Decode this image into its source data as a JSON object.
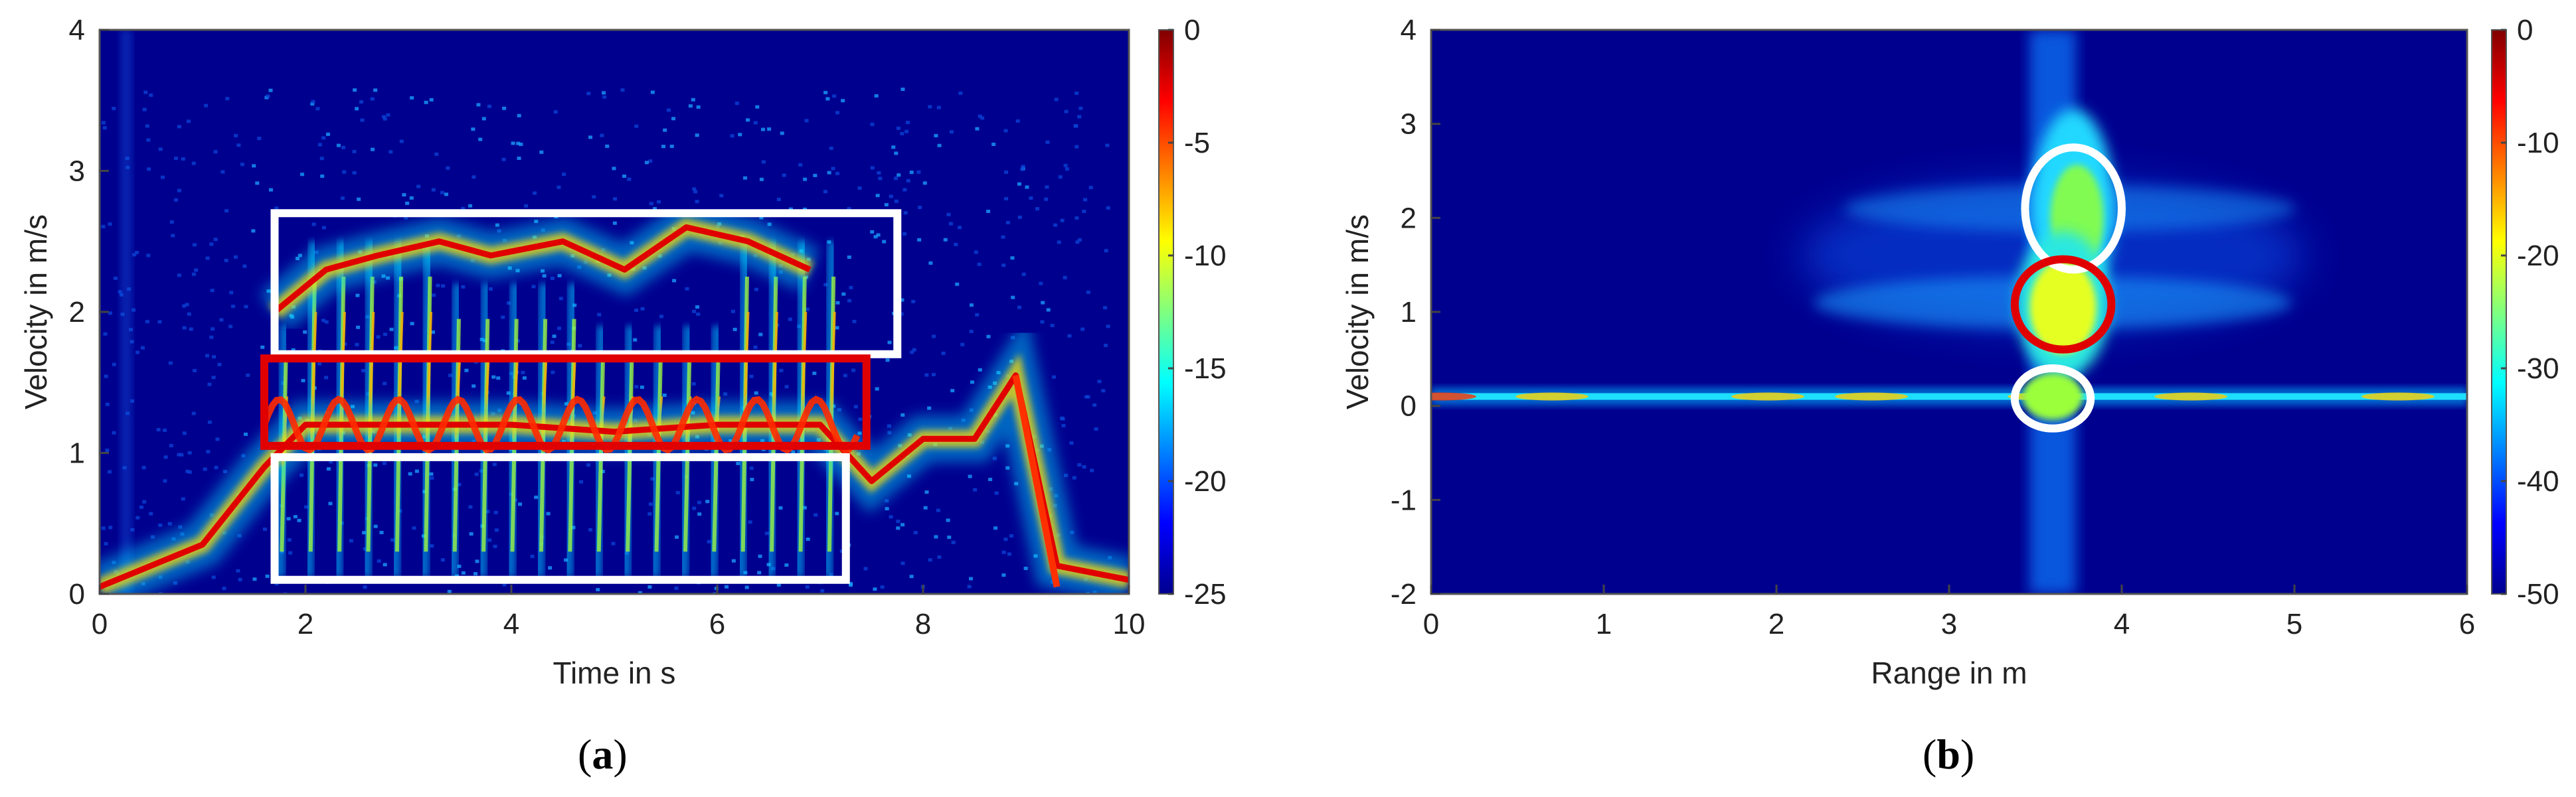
{
  "chart_data": [
    {
      "type": "heatmap",
      "panel_label": "a",
      "xlabel": "Time in s",
      "ylabel": "Velocity in m/s",
      "xlim": [
        0,
        10
      ],
      "ylim": [
        0,
        4
      ],
      "xticks": [
        0,
        2,
        4,
        6,
        8,
        10
      ],
      "yticks": [
        0,
        1,
        2,
        3,
        4
      ],
      "colorbar": {
        "range": [
          -25,
          0
        ],
        "ticks": [
          0,
          -5,
          -10,
          -15,
          -20,
          -25
        ],
        "colormap": "jet"
      },
      "background_color": "#00008f",
      "ridges": [
        {
          "name_hint": "torso",
          "points": [
            [
              0,
              0.05
            ],
            [
              1,
              0.35
            ],
            [
              1.6,
              0.9
            ],
            [
              2,
              1.2
            ],
            [
              3,
              1.2
            ],
            [
              4,
              1.2
            ],
            [
              5,
              1.15
            ],
            [
              6,
              1.2
            ],
            [
              7,
              1.2
            ],
            [
              7.5,
              0.8
            ],
            [
              8,
              1.1
            ],
            [
              8.5,
              1.1
            ],
            [
              8.9,
              1.55
            ],
            [
              9.3,
              0.2
            ],
            [
              10,
              0.1
            ]
          ]
        },
        {
          "name_hint": "upper-limb",
          "points": [
            [
              1.7,
              2.0
            ],
            [
              2.2,
              2.3
            ],
            [
              2.7,
              2.4
            ],
            [
              3.3,
              2.5
            ],
            [
              3.8,
              2.4
            ],
            [
              4.5,
              2.5
            ],
            [
              5.1,
              2.3
            ],
            [
              5.7,
              2.6
            ],
            [
              6.3,
              2.5
            ],
            [
              6.9,
              2.3
            ]
          ]
        }
      ],
      "annotations": [
        {
          "shape": "rect",
          "color": "#ffffff",
          "x": [
            1.7,
            7.75
          ],
          "y": [
            1.7,
            2.7
          ]
        },
        {
          "shape": "rect",
          "color": "#e00000",
          "x": [
            1.6,
            7.45
          ],
          "y": [
            1.05,
            1.67
          ]
        },
        {
          "shape": "rect",
          "color": "#ffffff",
          "x": [
            1.7,
            7.25
          ],
          "y": [
            0.1,
            0.97
          ]
        }
      ]
    },
    {
      "type": "heatmap",
      "panel_label": "b",
      "xlabel": "Range in m",
      "ylabel": "Velocity in m/s",
      "xlim": [
        0,
        6
      ],
      "ylim": [
        -2,
        4
      ],
      "xticks": [
        0,
        1,
        2,
        3,
        4,
        5,
        6
      ],
      "yticks": [
        -2,
        -1,
        0,
        1,
        2,
        3,
        4
      ],
      "colorbar": {
        "range": [
          -50,
          0
        ],
        "ticks": [
          0,
          -10,
          -20,
          -30,
          -40,
          -50
        ],
        "colormap": "jet"
      },
      "background_color": "#00008f",
      "features": [
        {
          "name_hint": "static-line",
          "velocity": 0.1
        },
        {
          "name_hint": "target-column",
          "range": 3.6
        }
      ],
      "annotations": [
        {
          "shape": "ellipse",
          "color": "#ffffff",
          "x": 3.72,
          "y": 2.1,
          "rx": 0.28,
          "ry": 0.65
        },
        {
          "shape": "ellipse",
          "color": "#e00000",
          "x": 3.66,
          "y": 1.08,
          "rx": 0.28,
          "ry": 0.48
        },
        {
          "shape": "ellipse",
          "color": "#ffffff",
          "x": 3.6,
          "y": 0.08,
          "rx": 0.22,
          "ry": 0.32
        }
      ]
    }
  ]
}
